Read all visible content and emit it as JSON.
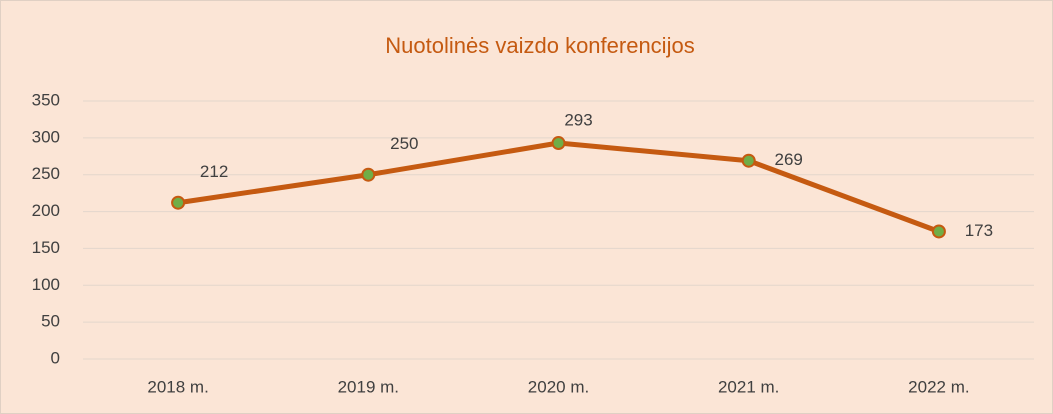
{
  "chart_data": {
    "type": "line",
    "title": "Nuotolinės vaizdo konferencijos",
    "categories": [
      "2018 m.",
      "2019 m.",
      "2020 m.",
      "2021 m.",
      "2022 m."
    ],
    "series": [
      {
        "name": "Nuotolinės vaizdo konferencijos",
        "color": "#c55a11",
        "marker_color": "#70ad47",
        "values": [
          212,
          250,
          293,
          269,
          173
        ]
      }
    ],
    "ylim": [
      0,
      350
    ],
    "yticks": [
      0,
      50,
      100,
      150,
      200,
      250,
      300,
      350
    ],
    "grid": true,
    "data_labels": true
  }
}
